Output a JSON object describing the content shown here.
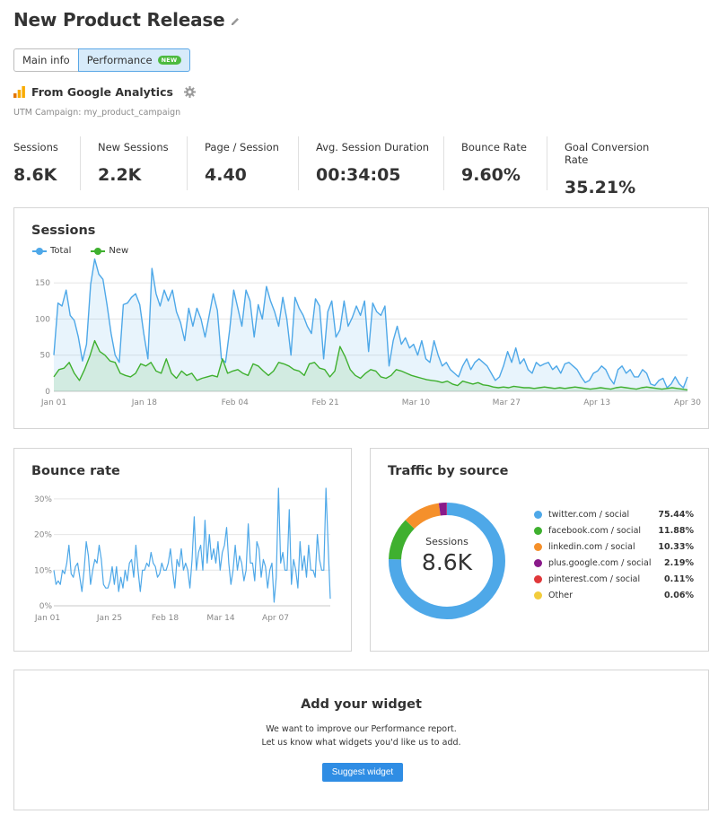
{
  "page": {
    "title": "New Product Release"
  },
  "tabs": {
    "main_info": "Main info",
    "performance": "Performance",
    "performance_badge": "NEW"
  },
  "analytics": {
    "source_title": "From Google Analytics",
    "utm_label": "UTM Campaign: my_product_campaign"
  },
  "metrics": [
    {
      "label": "Sessions",
      "value": "8.6K"
    },
    {
      "label": "New Sessions",
      "value": "2.2K"
    },
    {
      "label": "Page / Session",
      "value": "4.40"
    },
    {
      "label": "Avg. Session Duration",
      "value": "00:34:05"
    },
    {
      "label": "Bounce Rate",
      "value": "9.60%"
    },
    {
      "label": "Goal Conversion Rate",
      "value": "35.21%"
    }
  ],
  "sessions_card": {
    "title": "Sessions",
    "legend_total": "Total",
    "legend_new": "New"
  },
  "bounce_card": {
    "title": "Bounce rate"
  },
  "traffic_card": {
    "title": "Traffic by source",
    "center_label": "Sessions",
    "center_value": "8.6K"
  },
  "widget_card": {
    "title": "Add your widget",
    "line1": "We want to improve our Performance report.",
    "line2": "Let us know what widgets you'd like us to add.",
    "button": "Suggest widget"
  },
  "colors": {
    "total": "#4ea8e8",
    "new": "#3fb02f",
    "accent": "#2f8de4"
  },
  "chart_data": [
    {
      "type": "area",
      "title": "Sessions",
      "x_ticks": [
        "Jan 01",
        "Jan 18",
        "Feb 04",
        "Feb 21",
        "Mar 10",
        "Mar 27",
        "Apr 13",
        "Apr 30"
      ],
      "y_ticks": [
        "0",
        "50",
        "100",
        "150"
      ],
      "ylim": [
        0,
        185
      ],
      "x": "daily, Jan 01 – Apr 30",
      "series": [
        {
          "name": "Total",
          "color": "#4ea8e8",
          "values": [
            50,
            122,
            118,
            140,
            105,
            98,
            75,
            42,
            65,
            148,
            183,
            162,
            155,
            120,
            80,
            50,
            40,
            120,
            122,
            130,
            135,
            120,
            80,
            45,
            170,
            135,
            118,
            140,
            125,
            140,
            110,
            95,
            70,
            115,
            90,
            115,
            100,
            75,
            105,
            135,
            112,
            45,
            40,
            85,
            140,
            115,
            90,
            140,
            125,
            75,
            120,
            100,
            145,
            125,
            110,
            90,
            130,
            100,
            50,
            130,
            115,
            105,
            90,
            80,
            128,
            118,
            45,
            110,
            125,
            75,
            85,
            125,
            90,
            102,
            118,
            105,
            125,
            55,
            122,
            110,
            105,
            118,
            35,
            70,
            90,
            65,
            74,
            60,
            65,
            50,
            70,
            45,
            40,
            70,
            50,
            35,
            40,
            30,
            25,
            20,
            35,
            45,
            30,
            40,
            45,
            40,
            35,
            25,
            15,
            20,
            35,
            55,
            40,
            60,
            38,
            45,
            30,
            25,
            40,
            35,
            38,
            40,
            30,
            35,
            25,
            38,
            40,
            35,
            30,
            20,
            12,
            15,
            25,
            28,
            35,
            30,
            18,
            10,
            30,
            35,
            25,
            30,
            20,
            20,
            30,
            25,
            10,
            8,
            15,
            18,
            5,
            10,
            20,
            10,
            5,
            20
          ]
        },
        {
          "name": "New",
          "color": "#3fb02f",
          "values": [
            20,
            30,
            32,
            40,
            25,
            15,
            30,
            48,
            70,
            55,
            50,
            42,
            40,
            25,
            22,
            20,
            25,
            38,
            35,
            40,
            28,
            25,
            45,
            25,
            18,
            28,
            22,
            25,
            15,
            18,
            20,
            22,
            20,
            45,
            25,
            28,
            30,
            25,
            22,
            38,
            35,
            28,
            22,
            28,
            40,
            38,
            35,
            30,
            28,
            22,
            38,
            40,
            32,
            30,
            20,
            28,
            62,
            48,
            30,
            22,
            18,
            25,
            30,
            28,
            20,
            18,
            22,
            30,
            28,
            25,
            22,
            20,
            18,
            16,
            15,
            14,
            12,
            14,
            10,
            8,
            14,
            12,
            10,
            12,
            9,
            8,
            6,
            5,
            6,
            5,
            7,
            6,
            5,
            5,
            4,
            5,
            6,
            5,
            4,
            5,
            4,
            5,
            6,
            5,
            4,
            3,
            4,
            5,
            4,
            3,
            5,
            6,
            5,
            4,
            3,
            5,
            6,
            5,
            4,
            3,
            4,
            5,
            4,
            3,
            2
          ]
        }
      ]
    },
    {
      "type": "line",
      "title": "Bounce rate",
      "x_ticks": [
        "Jan 01",
        "Jan 25",
        "Feb 18",
        "Mar 14",
        "Apr 07"
      ],
      "y_ticks": [
        "0%",
        "10%",
        "20%",
        "30%"
      ],
      "ylim": [
        0,
        33
      ],
      "x": "daily, Jan 01 – Apr 30",
      "series": [
        {
          "name": "Bounce rate",
          "color": "#4ea8e8",
          "values": [
            10,
            6,
            7,
            6,
            10,
            9,
            12,
            17,
            9,
            8,
            11,
            12,
            8,
            4,
            10,
            18,
            14,
            6,
            10,
            13,
            12,
            17,
            13,
            6,
            5,
            5,
            7,
            11,
            6,
            11,
            4,
            8,
            5,
            10,
            7,
            12,
            13,
            8,
            17,
            10,
            4,
            10,
            10,
            12,
            11,
            15,
            12,
            11,
            8,
            9,
            12,
            10,
            10,
            12,
            16,
            10,
            5,
            13,
            11,
            16,
            10,
            12,
            10,
            5,
            13,
            25,
            10,
            15,
            17,
            10,
            24,
            12,
            20,
            13,
            16,
            12,
            18,
            10,
            15,
            17,
            22,
            12,
            6,
            10,
            17,
            10,
            14,
            12,
            7,
            10,
            23,
            12,
            12,
            7,
            18,
            16,
            8,
            13,
            11,
            5,
            10,
            12,
            1,
            8,
            33,
            12,
            15,
            10,
            10,
            27,
            6,
            13,
            10,
            5,
            18,
            10,
            14,
            8,
            17,
            10,
            10,
            8,
            20,
            13,
            10,
            10,
            33,
            17,
            2
          ]
        }
      ]
    },
    {
      "type": "pie",
      "title": "Traffic by source",
      "categories": [
        "twitter.com / social",
        "facebook.com / social",
        "linkedin.com / social",
        "plus.google.com / social",
        "pinterest.com / social",
        "Other"
      ],
      "values": [
        75.44,
        11.88,
        10.33,
        2.19,
        0.11,
        0.06
      ],
      "labels": [
        "75.44%",
        "11.88%",
        "10.33%",
        "2.19%",
        "0.11%",
        "0.06%"
      ],
      "colors": [
        "#4ea8e8",
        "#3fb02f",
        "#f5902b",
        "#8a1a8a",
        "#e0383a",
        "#f2cc3c"
      ]
    }
  ]
}
